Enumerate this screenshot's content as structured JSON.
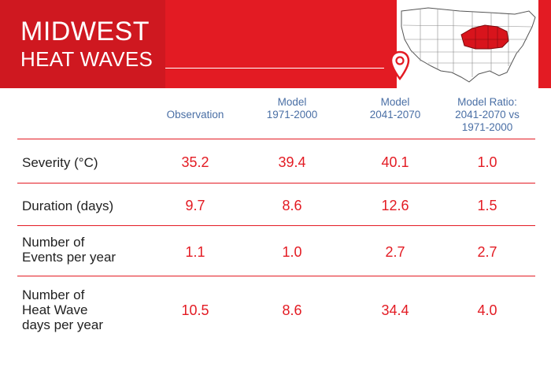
{
  "header": {
    "title_line1": "MIDWEST",
    "title_line2": "HEAT WAVES",
    "map_icon": "us-map-midwest-highlight",
    "pin_icon": "location-pin-icon"
  },
  "colors": {
    "brand_red": "#e31b23",
    "header_blue": "#4a6fa5"
  },
  "columns": [
    {
      "lines": [
        "Observation"
      ]
    },
    {
      "lines": [
        "Model",
        "1971-2000"
      ]
    },
    {
      "lines": [
        "Model",
        "2041-2070"
      ]
    },
    {
      "lines": [
        "Model Ratio:",
        "2041-2070 vs",
        "1971-2000"
      ]
    }
  ],
  "rows": [
    {
      "label": [
        "Severity (°C)"
      ],
      "values": [
        "35.2",
        "39.4",
        "40.1",
        "1.0"
      ]
    },
    {
      "label": [
        "Duration (days)"
      ],
      "values": [
        "9.7",
        "8.6",
        "12.6",
        "1.5"
      ]
    },
    {
      "label": [
        "Number of",
        "Events per year"
      ],
      "values": [
        "1.1",
        "1.0",
        "2.7",
        "2.7"
      ]
    },
    {
      "label": [
        "Number of",
        "Heat Wave",
        "days per year"
      ],
      "values": [
        "10.5",
        "8.6",
        "34.4",
        "4.0"
      ]
    }
  ]
}
